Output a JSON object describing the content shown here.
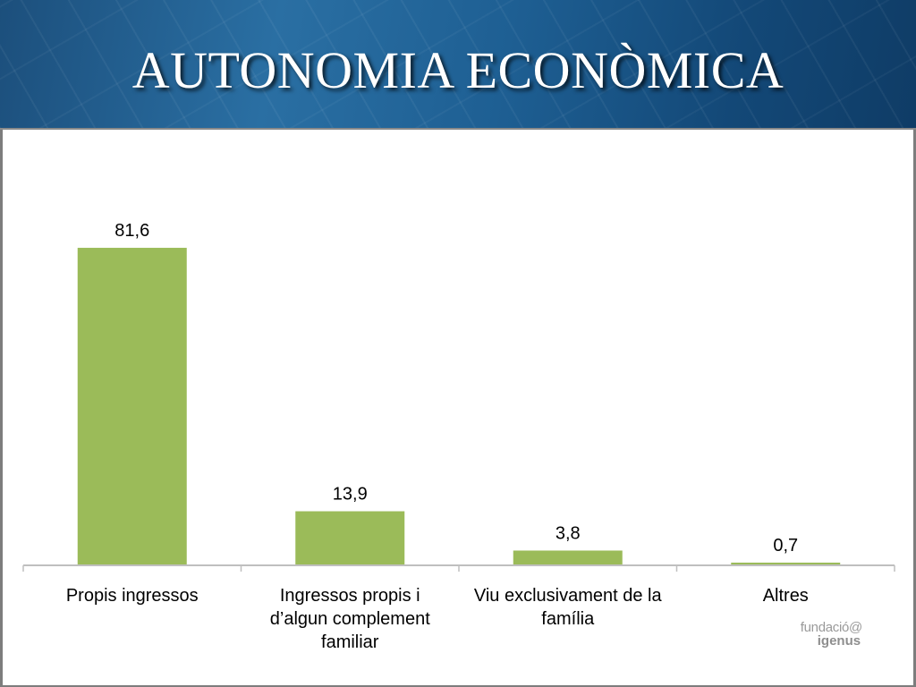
{
  "slide": {
    "title": "AUTONOMIA ECONÒMICA"
  },
  "logo": {
    "line1": "fundació@",
    "line2": "igenus"
  },
  "colors": {
    "bar": "#9bbb59",
    "axis": "#bfbfbf",
    "header": "#1e5f93"
  },
  "chart_data": {
    "type": "bar",
    "title": "",
    "xlabel": "",
    "ylabel": "",
    "categories": [
      [
        "Propis ingressos"
      ],
      [
        "Ingressos propis i",
        "d’algun complement",
        "familiar"
      ],
      [
        "Viu exclusivament de la",
        "família"
      ],
      [
        "Altres"
      ]
    ],
    "values": [
      81.6,
      13.9,
      3.8,
      0.7
    ],
    "data_labels": [
      "81,6",
      "13,9",
      "3,8",
      "0,7"
    ],
    "ylim": [
      0,
      100
    ],
    "grid": false,
    "legend": "none"
  }
}
